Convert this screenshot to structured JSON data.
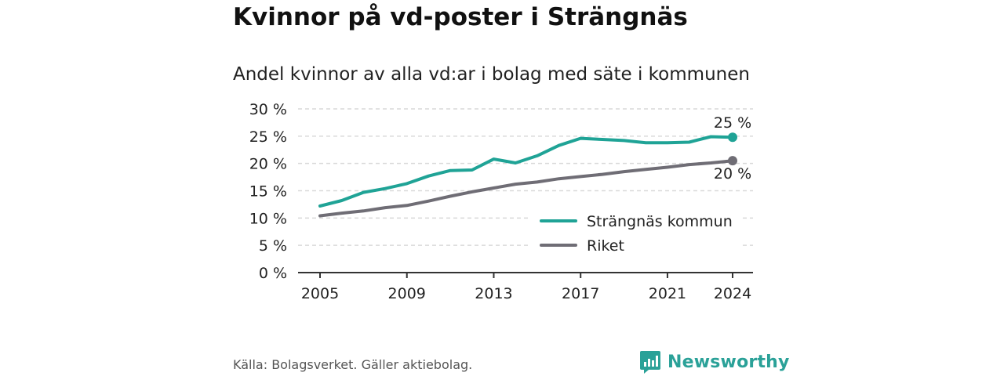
{
  "title": "Kvinnor på vd-poster i Strängnäs",
  "subtitle": "Andel kvinnor av alla vd:ar i bolag med säte i kommunen",
  "source": "Källa: Bolagsverket. Gäller aktiebolag.",
  "brand": {
    "name": "Newsworthy",
    "icon": "newsworthy-logo-icon",
    "color": "#2aa198"
  },
  "chart_data": {
    "type": "line",
    "x": [
      2005,
      2006,
      2007,
      2008,
      2009,
      2010,
      2011,
      2012,
      2013,
      2014,
      2015,
      2016,
      2017,
      2018,
      2019,
      2020,
      2021,
      2022,
      2023,
      2024
    ],
    "x_ticks": [
      2005,
      2009,
      2013,
      2017,
      2021,
      2024
    ],
    "y_ticks": [
      0,
      5,
      10,
      15,
      20,
      25,
      30
    ],
    "y_tick_suffix": " %",
    "ylim": [
      0,
      30
    ],
    "grid": true,
    "legend_position": "bottom-right",
    "series": [
      {
        "name": "Strängnäs kommun",
        "color": "#1fa396",
        "values": [
          12.2,
          13.2,
          14.7,
          15.4,
          16.3,
          17.7,
          18.7,
          18.8,
          20.8,
          20.1,
          21.4,
          23.3,
          24.6,
          24.4,
          24.2,
          23.8,
          23.8,
          23.9,
          24.9,
          24.8
        ],
        "end_label": "25 %"
      },
      {
        "name": "Riket",
        "color": "#6f6d75",
        "values": [
          10.4,
          10.9,
          11.3,
          11.9,
          12.3,
          13.1,
          14.0,
          14.8,
          15.5,
          16.2,
          16.6,
          17.2,
          17.6,
          18.0,
          18.5,
          18.9,
          19.3,
          19.8,
          20.1,
          20.5
        ],
        "end_label": "20 %"
      }
    ]
  }
}
